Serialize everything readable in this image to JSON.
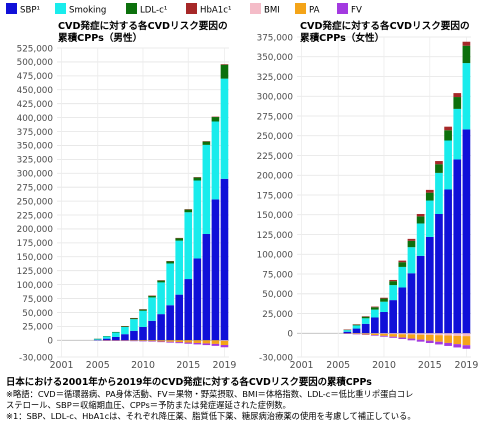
{
  "legend": [
    {
      "key": "sbp",
      "label": "SBP¹",
      "color": "#1010d8"
    },
    {
      "key": "smoking",
      "label": "Smoking",
      "color": "#19ecec"
    },
    {
      "key": "ldl",
      "label": "LDL-c¹",
      "color": "#0c700c"
    },
    {
      "key": "hba1c",
      "label": "HbA1c¹",
      "color": "#a62828"
    },
    {
      "key": "bmi",
      "label": "BMI",
      "color": "#f4bcc8"
    },
    {
      "key": "pa",
      "label": "PA",
      "color": "#f4a418"
    },
    {
      "key": "fv",
      "label": "FV",
      "color": "#a33ae0"
    }
  ],
  "chart_data": [
    {
      "type": "bar",
      "stacked": true,
      "title_lines": [
        "CVD発症に対する各CVDリスク要因の",
        "累積CPPs（男性）"
      ],
      "xlabel": "",
      "ylabel": "",
      "categories": [
        "2001",
        "2002",
        "2003",
        "2004",
        "2005",
        "2006",
        "2007",
        "2008",
        "2009",
        "2010",
        "2011",
        "2012",
        "2013",
        "2014",
        "2015",
        "2016",
        "2017",
        "2018",
        "2019"
      ],
      "xtick_labels": [
        "2001",
        "2005",
        "2010",
        "2015",
        "2019"
      ],
      "ylim": [
        -30000,
        525000
      ],
      "yticks": [
        -30000,
        0,
        25000,
        50000,
        75000,
        100000,
        125000,
        150000,
        175000,
        200000,
        225000,
        250000,
        275000,
        300000,
        325000,
        350000,
        375000,
        400000,
        425000,
        450000,
        475000,
        500000,
        525000
      ],
      "ytick_labels": [
        "-30,000",
        "0",
        "25,000",
        "50,000",
        "75,000",
        "100,000",
        "125,000",
        "150,000",
        "175,000",
        "200,000",
        "225,000",
        "250,000",
        "275,000",
        "300,000",
        "325,000",
        "350,000",
        "375,000",
        "400,000",
        "425,000",
        "450,000",
        "475,000",
        "500,000",
        "525,000"
      ],
      "grid": true,
      "series": [
        {
          "name": "SBP¹",
          "key": "sbp",
          "values": [
            0,
            0,
            0,
            0,
            1000,
            3000,
            6000,
            11000,
            17000,
            24000,
            35000,
            47000,
            63000,
            82000,
            110000,
            147000,
            191000,
            253000,
            290000
          ]
        },
        {
          "name": "Smoking",
          "key": "smoking",
          "values": [
            0,
            0,
            0,
            0,
            1500,
            4000,
            8000,
            13000,
            21000,
            29000,
            42000,
            57000,
            75000,
            97000,
            120000,
            140000,
            160000,
            140000,
            180000
          ]
        },
        {
          "name": "LDL-c¹",
          "key": "ldl",
          "values": [
            0,
            0,
            0,
            0,
            200,
            600,
            1000,
            1500,
            2000,
            2500,
            3000,
            3500,
            4000,
            4500,
            5000,
            5500,
            6000,
            8000,
            25000
          ]
        },
        {
          "name": "HbA1c¹",
          "key": "hba1c",
          "values": [
            0,
            0,
            0,
            0,
            0,
            0,
            0,
            100,
            100,
            200,
            200,
            300,
            300,
            400,
            400,
            500,
            600,
            700,
            1000
          ]
        },
        {
          "name": "BMI",
          "key": "bmi",
          "values": [
            0,
            0,
            0,
            0,
            0,
            0,
            0,
            0,
            0,
            0,
            0,
            0,
            0,
            0,
            0,
            0,
            0,
            0,
            -1000
          ]
        },
        {
          "name": "PA",
          "key": "pa",
          "values": [
            0,
            0,
            0,
            0,
            0,
            -200,
            -400,
            -600,
            -900,
            -1200,
            -1600,
            -2100,
            -2700,
            -3300,
            -4000,
            -4800,
            -5600,
            -6500,
            -7500
          ]
        },
        {
          "name": "FV",
          "key": "fv",
          "values": [
            0,
            0,
            0,
            0,
            0,
            -100,
            -200,
            -300,
            -500,
            -700,
            -900,
            -1200,
            -1500,
            -1800,
            -2200,
            -2600,
            -3000,
            -3500,
            -4000
          ]
        }
      ]
    },
    {
      "type": "bar",
      "stacked": true,
      "title_lines": [
        "CVD発症に対する各CVDリスク要因の",
        "累積CPPs（女性）"
      ],
      "xlabel": "",
      "ylabel": "",
      "categories": [
        "2001",
        "2002",
        "2003",
        "2004",
        "2005",
        "2006",
        "2007",
        "2008",
        "2009",
        "2010",
        "2011",
        "2012",
        "2013",
        "2014",
        "2015",
        "2016",
        "2017",
        "2018",
        "2019"
      ],
      "xtick_labels": [
        "2001",
        "2005",
        "2010",
        "2015",
        "2019"
      ],
      "ylim": [
        -30000,
        375000
      ],
      "yticks": [
        -30000,
        0,
        25000,
        50000,
        75000,
        100000,
        125000,
        150000,
        175000,
        200000,
        225000,
        250000,
        275000,
        300000,
        325000,
        350000,
        375000
      ],
      "ytick_labels": [
        "-30,000",
        "0",
        "25,000",
        "50,000",
        "75,000",
        "100,000",
        "125,000",
        "150,000",
        "175,000",
        "200,000",
        "225,000",
        "250,000",
        "275,000",
        "300,000",
        "325,000",
        "350,000",
        "375,000"
      ],
      "grid": true,
      "series": [
        {
          "name": "SBP¹",
          "key": "sbp",
          "values": [
            0,
            0,
            0,
            0,
            0,
            2000,
            6000,
            12000,
            20000,
            27000,
            42000,
            58000,
            76000,
            98000,
            122000,
            151000,
            182000,
            220000,
            258000
          ]
        },
        {
          "name": "Smoking",
          "key": "smoking",
          "values": [
            0,
            0,
            0,
            0,
            0,
            2000,
            4000,
            7000,
            10000,
            13000,
            19000,
            26000,
            33000,
            41000,
            46000,
            52000,
            62000,
            64000,
            84000
          ]
        },
        {
          "name": "LDL-c¹",
          "key": "ldl",
          "values": [
            0,
            0,
            0,
            0,
            0,
            600,
            1000,
            2000,
            3000,
            4000,
            5000,
            6000,
            8000,
            9000,
            10000,
            11000,
            13000,
            15000,
            22000
          ]
        },
        {
          "name": "HbA1c¹",
          "key": "hba1c",
          "values": [
            0,
            0,
            0,
            0,
            0,
            200,
            400,
            600,
            800,
            1000,
            1500,
            2000,
            2500,
            3000,
            3500,
            4000,
            4500,
            5000,
            5000
          ]
        },
        {
          "name": "BMI",
          "key": "bmi",
          "values": [
            0,
            0,
            0,
            0,
            0,
            0,
            -100,
            -300,
            -500,
            -700,
            -1000,
            -1200,
            -1500,
            -1800,
            -2100,
            -2400,
            -2800,
            -3200,
            -3600
          ]
        },
        {
          "name": "PA",
          "key": "pa",
          "values": [
            0,
            0,
            0,
            0,
            0,
            -300,
            -700,
            -1200,
            -1800,
            -2500,
            -3300,
            -4200,
            -5200,
            -6200,
            -7200,
            -8300,
            -9400,
            -10500,
            -11500
          ]
        },
        {
          "name": "FV",
          "key": "fv",
          "values": [
            0,
            0,
            0,
            0,
            0,
            -100,
            -300,
            -500,
            -800,
            -1100,
            -1400,
            -1800,
            -2200,
            -2600,
            -3000,
            -3400,
            -3800,
            -4200,
            -4500
          ]
        }
      ]
    }
  ],
  "caption": {
    "title": "日本における2001年から2019年のCVD発症に対する各CVDリスク要因の累積CPPs",
    "notes": [
      "※略語：CVD＝循環器病、PA身体活動、FV＝果物・野菜摂取、BMI＝体格指数、LDL-c＝低比重リポ蛋白コレ",
      "ステロール、SBP＝収縮期血圧、CPPs＝予防または発症遅延された症例数。",
      "※1：SBP、LDL-c、HbA1cは、それぞれ降圧薬、脂質低下薬、糖尿病治療薬の使用を考慮して補正している。"
    ]
  }
}
